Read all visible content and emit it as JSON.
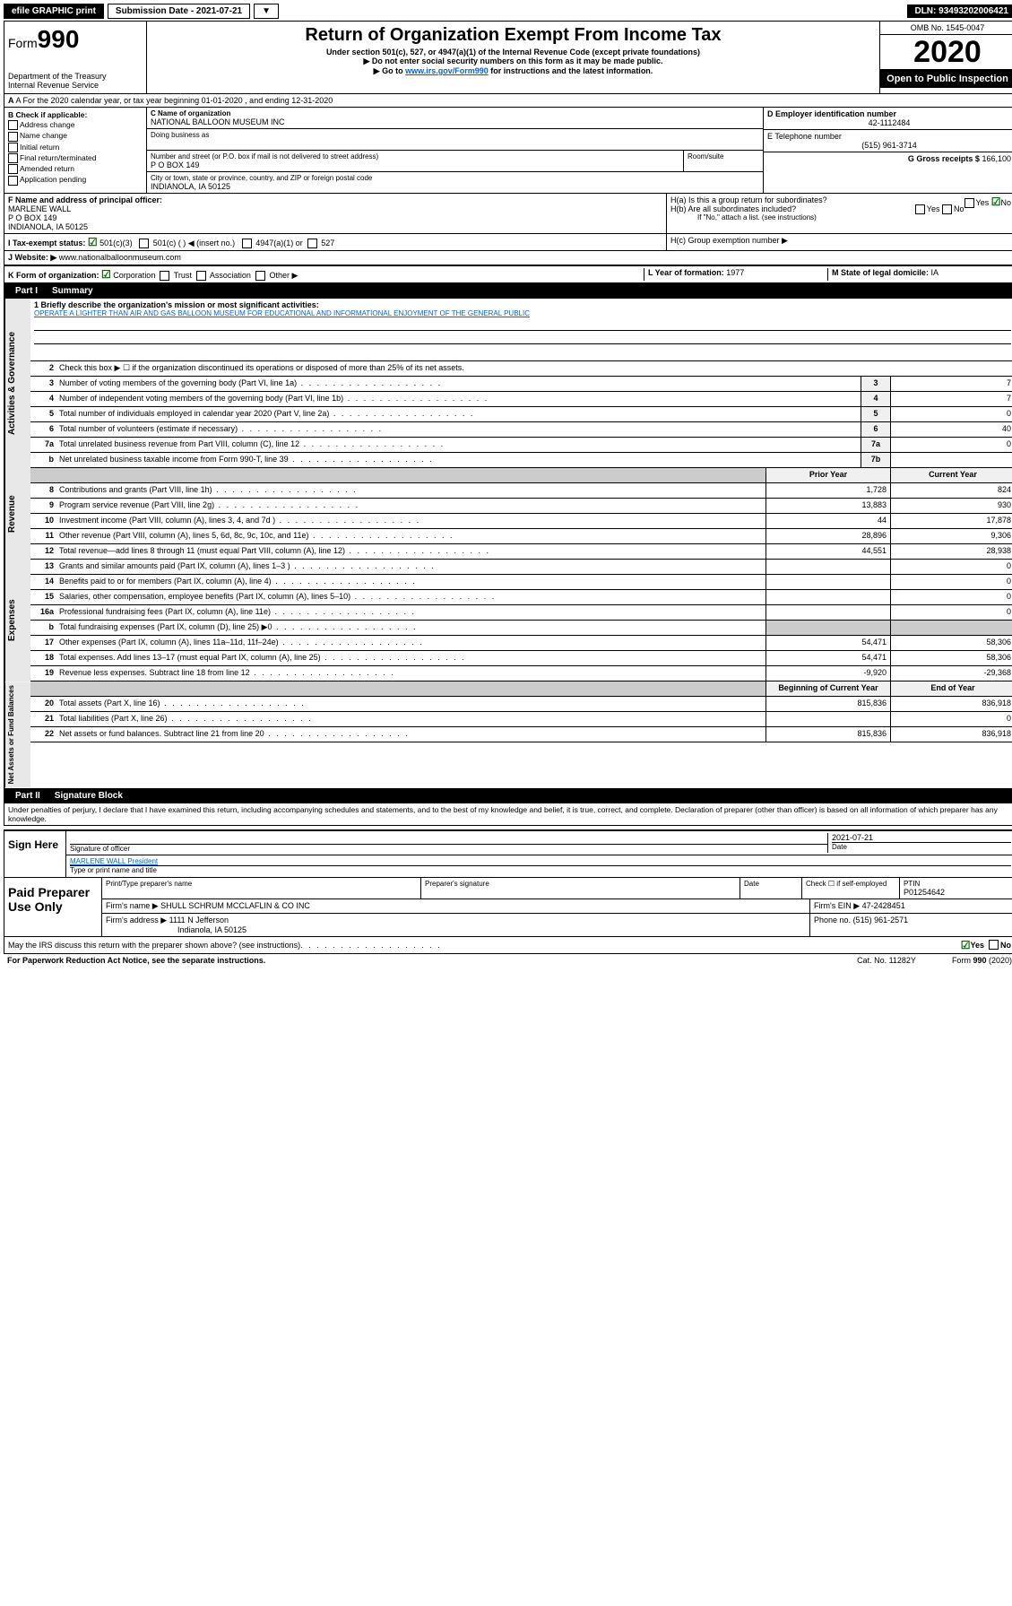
{
  "topbar": {
    "efile": "efile GRAPHIC print",
    "submission_label": "Submission Date - 2021-07-21",
    "dln": "DLN: 93493202006421"
  },
  "header": {
    "form_prefix": "Form",
    "form_number": "990",
    "dept": "Department of the Treasury\nInternal Revenue Service",
    "title": "Return of Organization Exempt From Income Tax",
    "subtitle": "Under section 501(c), 527, or 4947(a)(1) of the Internal Revenue Code (except private foundations)",
    "note1": "▶ Do not enter social security numbers on this form as it may be made public.",
    "note2_pre": "▶ Go to ",
    "note2_link": "www.irs.gov/Form990",
    "note2_post": " for instructions and the latest information.",
    "omb": "OMB No. 1545-0047",
    "year": "2020",
    "open": "Open to Public Inspection"
  },
  "rowA": {
    "text": "A For the 2020 calendar year, or tax year beginning 01-01-2020    , and ending 12-31-2020"
  },
  "boxB": {
    "header": "B Check if applicable:",
    "items": [
      "Address change",
      "Name change",
      "Initial return",
      "Final return/terminated",
      "Amended return",
      "Application pending"
    ]
  },
  "boxC": {
    "name_label": "C Name of organization",
    "name": "NATIONAL BALLOON MUSEUM INC",
    "dba_label": "Doing business as",
    "addr_label": "Number and street (or P.O. box if mail is not delivered to street address)",
    "room_label": "Room/suite",
    "addr": "P O BOX 149",
    "city_label": "City or town, state or province, country, and ZIP or foreign postal code",
    "city": "INDIANOLA, IA  50125"
  },
  "boxD": {
    "label": "D Employer identification number",
    "value": "42-1112484"
  },
  "boxE": {
    "label": "E Telephone number",
    "value": "(515) 961-3714"
  },
  "boxG": {
    "label": "G Gross receipts $",
    "value": "166,100"
  },
  "boxF": {
    "label": "F Name and address of principal officer:",
    "name": "MARLENE WALL",
    "addr1": "P O BOX 149",
    "addr2": "INDIANOLA, IA  50125"
  },
  "boxH": {
    "ha": "H(a)  Is this a group return for subordinates?",
    "hb": "H(b)  Are all subordinates included?",
    "hb_note": "If \"No,\" attach a list. (see instructions)",
    "hc": "H(c)  Group exemption number ▶",
    "yes": "Yes",
    "no": "No"
  },
  "rowI": {
    "label": "I  Tax-exempt status:",
    "opts": [
      "501(c)(3)",
      "501(c) (   ) ◀ (insert no.)",
      "4947(a)(1) or",
      "527"
    ]
  },
  "rowJ": {
    "label": "J  Website: ▶",
    "value": "www.nationalballoonmuseum.com"
  },
  "rowK": {
    "label": "K Form of organization:",
    "opts": [
      "Corporation",
      "Trust",
      "Association",
      "Other ▶"
    ],
    "L_label": "L Year of formation:",
    "L_value": "1977",
    "M_label": "M State of legal domicile:",
    "M_value": "IA"
  },
  "part1": {
    "title": "Part I",
    "subtitle": "Summary",
    "sections": {
      "governance": "Activities & Governance",
      "revenue": "Revenue",
      "expenses": "Expenses",
      "net": "Net Assets or Fund Balances"
    },
    "mission_label": "1  Briefly describe the organization's mission or most significant activities:",
    "mission": "OPERATE A LIGHTER THAN AIR AND GAS BALLOON MUSEUM FOR EDUCATIONAL AND INFORMATIONAL ENJOYMENT OF THE GENERAL PUBLIC",
    "line2": "Check this box ▶ ☐  if the organization discontinued its operations or disposed of more than 25% of its net assets.",
    "gov_lines": [
      {
        "n": "3",
        "label": "Number of voting members of the governing body (Part VI, line 1a)",
        "k": "3",
        "v": "7"
      },
      {
        "n": "4",
        "label": "Number of independent voting members of the governing body (Part VI, line 1b)",
        "k": "4",
        "v": "7"
      },
      {
        "n": "5",
        "label": "Total number of individuals employed in calendar year 2020 (Part V, line 2a)",
        "k": "5",
        "v": "0"
      },
      {
        "n": "6",
        "label": "Total number of volunteers (estimate if necessary)",
        "k": "6",
        "v": "40"
      },
      {
        "n": "7a",
        "label": "Total unrelated business revenue from Part VIII, column (C), line 12",
        "k": "7a",
        "v": "0"
      },
      {
        "n": "b",
        "label": "Net unrelated business taxable income from Form 990-T, line 39",
        "k": "7b",
        "v": ""
      }
    ],
    "col_headers": {
      "prior": "Prior Year",
      "current": "Current Year"
    },
    "rev_lines": [
      {
        "n": "8",
        "label": "Contributions and grants (Part VIII, line 1h)",
        "p": "1,728",
        "c": "824"
      },
      {
        "n": "9",
        "label": "Program service revenue (Part VIII, line 2g)",
        "p": "13,883",
        "c": "930"
      },
      {
        "n": "10",
        "label": "Investment income (Part VIII, column (A), lines 3, 4, and 7d )",
        "p": "44",
        "c": "17,878"
      },
      {
        "n": "11",
        "label": "Other revenue (Part VIII, column (A), lines 5, 6d, 8c, 9c, 10c, and 11e)",
        "p": "28,896",
        "c": "9,306"
      },
      {
        "n": "12",
        "label": "Total revenue—add lines 8 through 11 (must equal Part VIII, column (A), line 12)",
        "p": "44,551",
        "c": "28,938"
      }
    ],
    "exp_lines": [
      {
        "n": "13",
        "label": "Grants and similar amounts paid (Part IX, column (A), lines 1–3 )",
        "p": "",
        "c": "0"
      },
      {
        "n": "14",
        "label": "Benefits paid to or for members (Part IX, column (A), line 4)",
        "p": "",
        "c": "0"
      },
      {
        "n": "15",
        "label": "Salaries, other compensation, employee benefits (Part IX, column (A), lines 5–10)",
        "p": "",
        "c": "0"
      },
      {
        "n": "16a",
        "label": "Professional fundraising fees (Part IX, column (A), line 11e)",
        "p": "",
        "c": "0"
      },
      {
        "n": "b",
        "label": "Total fundraising expenses (Part IX, column (D), line 25) ▶0",
        "p": "",
        "c": "",
        "shaded": true
      },
      {
        "n": "17",
        "label": "Other expenses (Part IX, column (A), lines 11a–11d, 11f–24e)",
        "p": "54,471",
        "c": "58,306"
      },
      {
        "n": "18",
        "label": "Total expenses. Add lines 13–17 (must equal Part IX, column (A), line 25)",
        "p": "54,471",
        "c": "58,306"
      },
      {
        "n": "19",
        "label": "Revenue less expenses. Subtract line 18 from line 12",
        "p": "-9,920",
        "c": "-29,368"
      }
    ],
    "net_headers": {
      "begin": "Beginning of Current Year",
      "end": "End of Year"
    },
    "net_lines": [
      {
        "n": "20",
        "label": "Total assets (Part X, line 16)",
        "p": "815,836",
        "c": "836,918"
      },
      {
        "n": "21",
        "label": "Total liabilities (Part X, line 26)",
        "p": "",
        "c": "0"
      },
      {
        "n": "22",
        "label": "Net assets or fund balances. Subtract line 21 from line 20",
        "p": "815,836",
        "c": "836,918"
      }
    ]
  },
  "part2": {
    "title": "Part II",
    "subtitle": "Signature Block",
    "penalties": "Under penalties of perjury, I declare that I have examined this return, including accompanying schedules and statements, and to the best of my knowledge and belief, it is true, correct, and complete. Declaration of preparer (other than officer) is based on all information of which preparer has any knowledge."
  },
  "sign": {
    "label": "Sign Here",
    "sig_officer": "Signature of officer",
    "date_label": "Date",
    "date": "2021-07-21",
    "name": "MARLENE WALL President",
    "name_label": "Type or print name and title"
  },
  "paid": {
    "label": "Paid Preparer Use Only",
    "h1": "Print/Type preparer's name",
    "h2": "Preparer's signature",
    "h3": "Date",
    "h4_check": "Check ☐ if self-employed",
    "h5": "PTIN",
    "ptin": "P01254642",
    "firm_label": "Firm's name    ▶",
    "firm": "SHULL SCHRUM MCCLAFLIN & CO INC",
    "ein_label": "Firm's EIN ▶",
    "ein": "47-2428451",
    "addr_label": "Firm's address ▶",
    "addr": "1111 N Jefferson",
    "addr2": "Indianola, IA  50125",
    "phone_label": "Phone no.",
    "phone": "(515) 961-2571"
  },
  "footer": {
    "discuss": "May the IRS discuss this return with the preparer shown above? (see instructions)",
    "yes": "Yes",
    "no": "No",
    "paperwork": "For Paperwork Reduction Act Notice, see the separate instructions.",
    "cat": "Cat. No. 11282Y",
    "form": "Form 990 (2020)"
  }
}
